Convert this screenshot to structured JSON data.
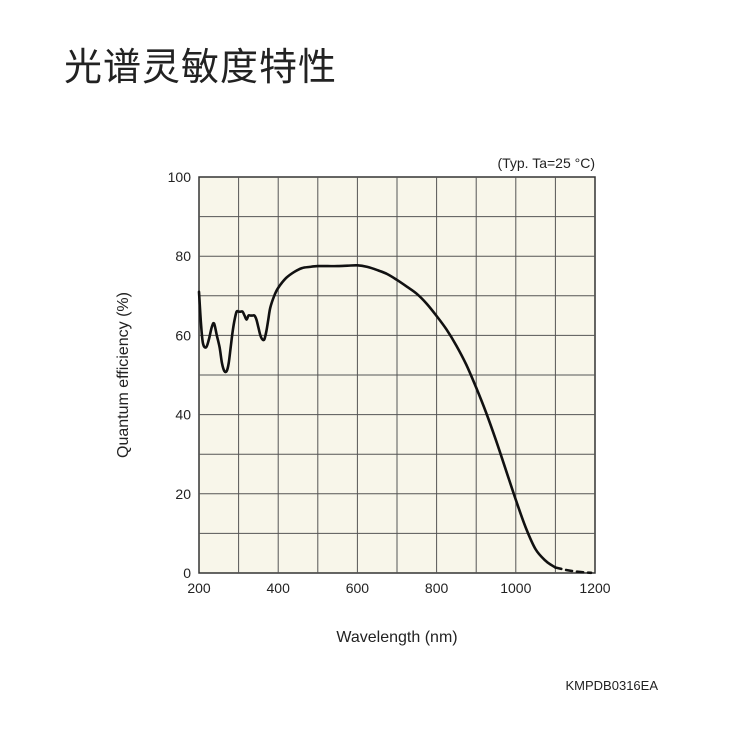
{
  "page": {
    "title": "光谱灵敏度特性"
  },
  "figure_code": "KMPDB0316EA",
  "colors": {
    "plot_bg": "#f8f6ea",
    "grid": "#555555",
    "curve": "#111111"
  },
  "chart_data": {
    "type": "line",
    "title": "",
    "note": "(Typ. Ta=25 °C)",
    "xlabel": "Wavelength (nm)",
    "ylabel": "Quantum efficiency (%)",
    "xlim": [
      200,
      1200
    ],
    "ylim": [
      0,
      100
    ],
    "xticks": [
      200,
      400,
      600,
      800,
      1000,
      1200
    ],
    "yticks": [
      0,
      20,
      40,
      60,
      80,
      100
    ],
    "grid": true,
    "series": [
      {
        "x": [
          200,
          205,
          210,
          218,
          225,
          232,
          238,
          245,
          252,
          258,
          264,
          270,
          275,
          280,
          285,
          290,
          295,
          300,
          305,
          310,
          315,
          320,
          325,
          330,
          335,
          340,
          345,
          350,
          355,
          360,
          365,
          370,
          375,
          380,
          390,
          400,
          420,
          440,
          460,
          480,
          500,
          525,
          550,
          575,
          600,
          625,
          650,
          675,
          700,
          725,
          750,
          775,
          800,
          825,
          850,
          875,
          900,
          925,
          950,
          975,
          1000,
          1025,
          1050,
          1075,
          1090,
          1100
        ],
        "y": [
          71,
          63,
          58,
          57,
          59,
          62,
          63,
          60,
          57,
          53,
          51,
          51,
          53,
          57,
          61,
          64,
          66,
          66,
          66,
          66,
          65,
          64,
          65,
          65,
          65,
          65,
          64,
          62,
          60,
          59,
          59,
          61,
          64,
          67,
          70,
          72,
          74.5,
          76,
          77,
          77.3,
          77.5,
          77.5,
          77.5,
          77.6,
          77.7,
          77.3,
          76.5,
          75.5,
          74,
          72.3,
          70.5,
          68,
          64.9,
          61.5,
          57.4,
          52.6,
          46.8,
          40.5,
          33.5,
          26,
          18.5,
          11.5,
          6,
          3.1,
          2,
          1.4
        ]
      },
      {
        "x": [
          1100,
          1125,
          1150,
          1175,
          1190
        ],
        "y": [
          1.4,
          0.8,
          0.4,
          0.15,
          0.05
        ],
        "dashed": true
      }
    ]
  }
}
